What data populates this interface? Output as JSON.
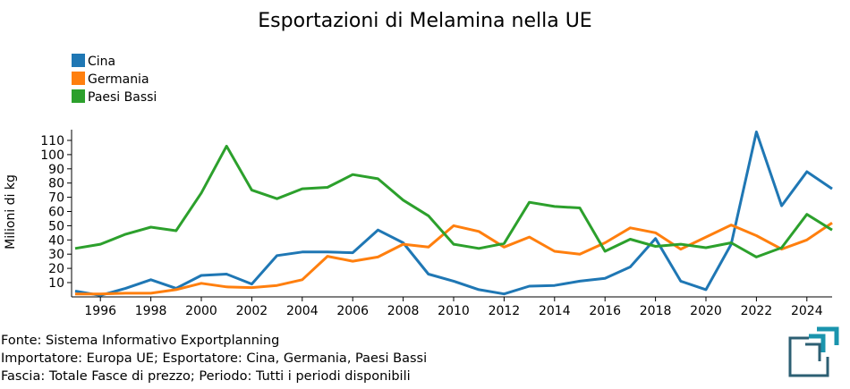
{
  "chart_data": {
    "type": "line",
    "title": "Esportazioni di Melamina nella UE",
    "xlabel": "",
    "ylabel": "Milioni di kg",
    "x": [
      1995,
      1996,
      1997,
      1998,
      1999,
      2000,
      2001,
      2002,
      2003,
      2004,
      2005,
      2006,
      2007,
      2008,
      2009,
      2010,
      2011,
      2012,
      2013,
      2014,
      2015,
      2016,
      2017,
      2018,
      2019,
      2020,
      2021,
      2022,
      2023,
      2024,
      2025
    ],
    "xlim": [
      1995,
      2025
    ],
    "ylim": [
      0,
      115
    ],
    "xticks": [
      "1996",
      "1998",
      "2000",
      "2002",
      "2004",
      "2006",
      "2008",
      "2010",
      "2012",
      "2014",
      "2016",
      "2018",
      "2020",
      "2022",
      "2024"
    ],
    "yticks": [
      "10",
      "20",
      "30",
      "40",
      "50",
      "60",
      "70",
      "80",
      "90",
      "100",
      "110"
    ],
    "legend_position": "top-left",
    "grid": false,
    "series": [
      {
        "name": "Cina",
        "color": "#1f77b4",
        "values": [
          4,
          1,
          6,
          12,
          6,
          15,
          16,
          9,
          29,
          31.5,
          31.5,
          31,
          47,
          38,
          16,
          11,
          5,
          2,
          7.5,
          8,
          11,
          13,
          21,
          41,
          11,
          5,
          37,
          116,
          64,
          88,
          76
        ]
      },
      {
        "name": "Germania",
        "color": "#ff7f0e",
        "values": [
          2,
          2,
          2.5,
          2.5,
          5,
          9.5,
          7,
          6.5,
          8,
          12,
          28.5,
          25,
          28,
          37,
          35,
          50,
          46,
          35,
          42,
          32,
          30,
          38,
          48.5,
          45,
          33.5,
          42,
          50.5,
          43,
          33.5,
          40,
          52
        ]
      },
      {
        "name": "Paesi Bassi",
        "color": "#2ca02c",
        "values": [
          34,
          37,
          44,
          49,
          46.5,
          73,
          106,
          75,
          69,
          76,
          77,
          86,
          83,
          68,
          57,
          37,
          34,
          37.5,
          66.5,
          63.5,
          62.5,
          32,
          40.5,
          35.5,
          37,
          34.5,
          38,
          28,
          34.5,
          58,
          47
        ]
      }
    ]
  },
  "footer": {
    "line1": "Fonte: Sistema Informativo Exportplanning",
    "line2": "Importatore: Europa UE; Esportatore: Cina, Germania, Paesi Bassi",
    "line3": "Fascia: Totale Fasce di prezzo; Periodo: Tutti i periodi disponibili"
  }
}
